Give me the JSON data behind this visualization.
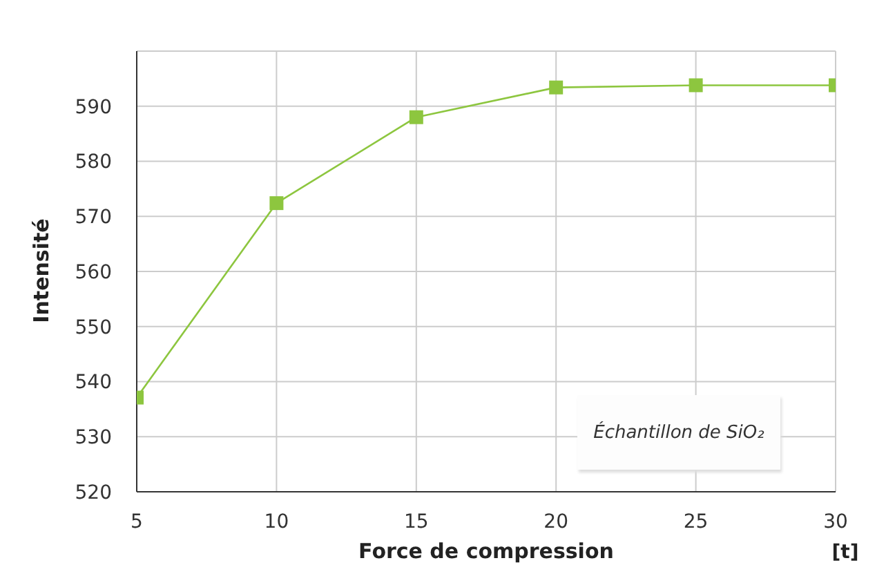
{
  "chart_data": {
    "type": "line",
    "xlabel": "Force de compression",
    "ylabel": "Intensité",
    "annotations": [
      "[t]",
      "Échantillon de SiO₂"
    ],
    "x": [
      5,
      10,
      15,
      20,
      25,
      30
    ],
    "series": [
      {
        "color": "#8dc63f",
        "values": [
          537.1,
          572.4,
          588,
          593.4,
          593.8,
          593.8
        ]
      }
    ],
    "xlim": [
      5,
      30
    ],
    "xticks": [
      5,
      10,
      15,
      20,
      25,
      30
    ],
    "ylim": [
      520,
      600
    ],
    "yticks": [
      520,
      530,
      540,
      550,
      560,
      570,
      580,
      590
    ],
    "grid": true,
    "marker": "square"
  }
}
